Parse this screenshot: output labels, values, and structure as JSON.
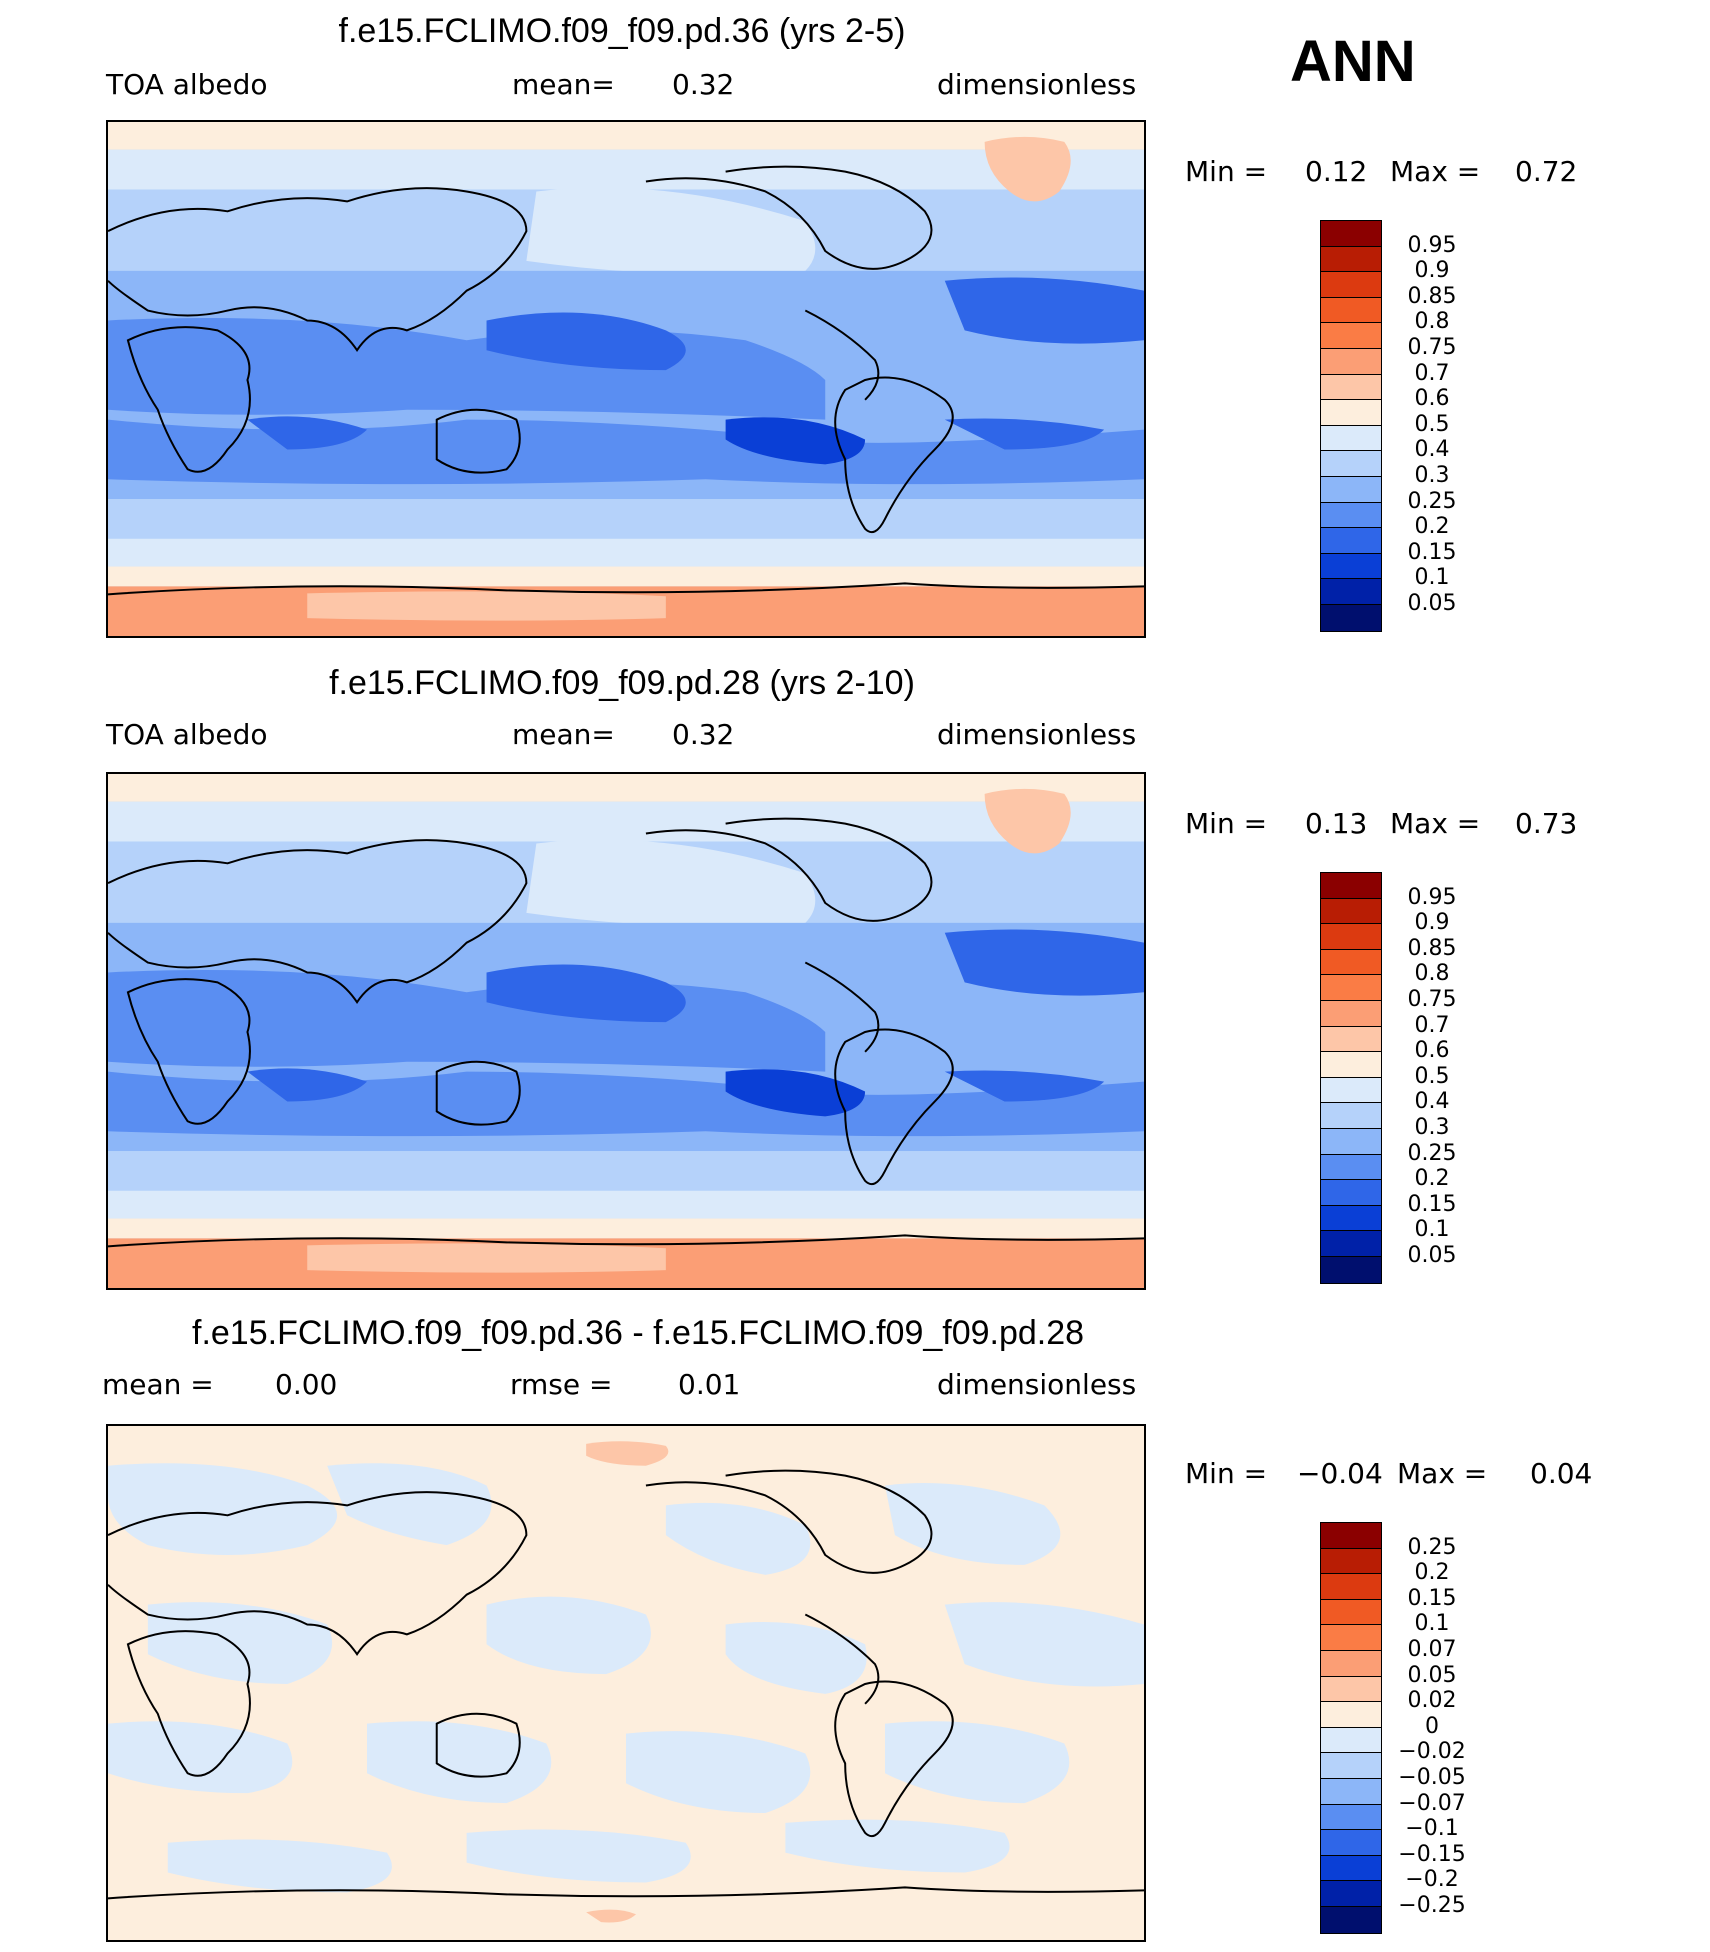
{
  "season": "ANN",
  "panels": [
    {
      "title": "f.e15.FCLIMO.f09_f09.pd.36 (yrs 2-5)",
      "left_label": "TOA  albedo",
      "mid_label": "mean=",
      "mid_value": "0.32",
      "right_label": "dimensionless",
      "min_label": "Min  =",
      "min_value": "0.12",
      "max_label": "Max  =",
      "max_value": "0.72"
    },
    {
      "title": "f.e15.FCLIMO.f09_f09.pd.28 (yrs 2-10)",
      "left_label": "TOA  albedo",
      "mid_label": "mean=",
      "mid_value": "0.32",
      "right_label": "dimensionless",
      "min_label": "Min  =",
      "min_value": "0.13",
      "max_label": "Max  =",
      "max_value": "0.73"
    },
    {
      "title": "f.e15.FCLIMO.f09_f09.pd.36 - f.e15.FCLIMO.f09_f09.pd.28",
      "left_label": "mean  =",
      "left_value": "0.00",
      "mid_label": "rmse  =",
      "mid_value": "0.01",
      "right_label": "dimensionless",
      "min_label": "Min  =",
      "min_value": "−0.04",
      "max_label": "Max  =",
      "max_value": "0.04"
    }
  ],
  "colorbar_abs": {
    "labels": [
      "0.95",
      "0.9",
      "0.85",
      "0.8",
      "0.75",
      "0.7",
      "0.6",
      "0.5",
      "0.4",
      "0.3",
      "0.25",
      "0.2",
      "0.15",
      "0.1",
      "0.05"
    ],
    "colors": [
      "#8b0000",
      "#b81d04",
      "#dc3a10",
      "#f05a24",
      "#fa7c45",
      "#fb9e75",
      "#fdc6a8",
      "#fdeedd",
      "#dbeafa",
      "#b5d2fa",
      "#8cb6f8",
      "#5a8ef2",
      "#2f66e8",
      "#0a3fd6",
      "#0021a8",
      "#000f6e"
    ]
  },
  "colorbar_diff": {
    "labels": [
      "0.25",
      "0.2",
      "0.15",
      "0.1",
      "0.07",
      "0.05",
      "0.02",
      "0",
      "−0.02",
      "−0.05",
      "−0.07",
      "−0.1",
      "−0.15",
      "−0.2",
      "−0.25"
    ],
    "colors": [
      "#8b0000",
      "#b81d04",
      "#dc3a10",
      "#f05a24",
      "#fa7c45",
      "#fb9e75",
      "#fdc6a8",
      "#fdeedd",
      "#dbeafa",
      "#b5d2fa",
      "#8cb6f8",
      "#5a8ef2",
      "#2f66e8",
      "#0a3fd6",
      "#0021a8",
      "#000f6e"
    ]
  }
}
